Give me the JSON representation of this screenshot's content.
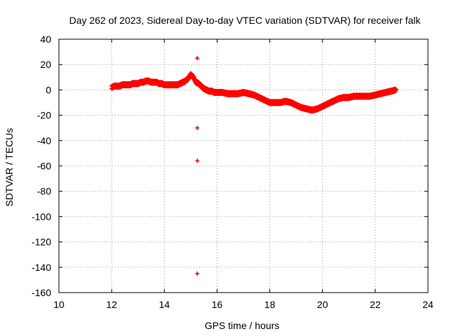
{
  "chart_data": {
    "type": "scatter",
    "title": "Day 262 of 2023, Sidereal Day-to-day VTEC variation (SDTVAR) for receiver falk",
    "xlabel": "GPS time / hours",
    "ylabel": "SDTVAR / TECUs",
    "xlim": [
      10,
      24
    ],
    "ylim": [
      -160,
      40
    ],
    "xticks": [
      "10",
      "12",
      "14",
      "16",
      "18",
      "20",
      "22",
      "24"
    ],
    "yticks": [
      "40",
      "20",
      "0",
      "-20",
      "-40",
      "-60",
      "-80",
      "-100",
      "-120",
      "-140",
      "-160"
    ],
    "grid": true,
    "marker": "+",
    "color": "#ff0000",
    "series": [
      {
        "name": "SDTVAR",
        "points": [
          [
            12.0,
            2
          ],
          [
            12.1,
            3
          ],
          [
            12.2,
            3
          ],
          [
            12.3,
            3
          ],
          [
            12.4,
            4
          ],
          [
            12.5,
            4
          ],
          [
            12.6,
            4
          ],
          [
            12.7,
            4
          ],
          [
            12.8,
            5
          ],
          [
            12.9,
            5
          ],
          [
            13.0,
            5
          ],
          [
            13.1,
            6
          ],
          [
            13.2,
            6
          ],
          [
            13.3,
            7
          ],
          [
            13.4,
            7
          ],
          [
            13.5,
            6
          ],
          [
            13.6,
            6
          ],
          [
            13.7,
            6
          ],
          [
            13.8,
            5
          ],
          [
            13.9,
            5
          ],
          [
            14.0,
            4
          ],
          [
            14.1,
            4
          ],
          [
            14.2,
            4
          ],
          [
            14.3,
            4
          ],
          [
            14.4,
            4
          ],
          [
            14.5,
            4
          ],
          [
            14.6,
            5
          ],
          [
            14.7,
            6
          ],
          [
            14.8,
            7
          ],
          [
            14.9,
            9
          ],
          [
            15.0,
            12
          ],
          [
            15.1,
            10
          ],
          [
            15.2,
            6
          ],
          [
            15.3,
            5
          ],
          [
            15.4,
            3
          ],
          [
            15.5,
            1
          ],
          [
            15.6,
            0
          ],
          [
            15.7,
            -1
          ],
          [
            15.8,
            -1
          ],
          [
            15.9,
            -2
          ],
          [
            16.0,
            -2
          ],
          [
            16.2,
            -2
          ],
          [
            16.4,
            -3
          ],
          [
            16.6,
            -3
          ],
          [
            16.8,
            -3
          ],
          [
            17.0,
            -2
          ],
          [
            17.2,
            -3
          ],
          [
            17.4,
            -4
          ],
          [
            17.6,
            -6
          ],
          [
            17.8,
            -8
          ],
          [
            18.0,
            -10
          ],
          [
            18.2,
            -10
          ],
          [
            18.4,
            -10
          ],
          [
            18.6,
            -9
          ],
          [
            18.8,
            -10
          ],
          [
            19.0,
            -12
          ],
          [
            19.2,
            -14
          ],
          [
            19.4,
            -15
          ],
          [
            19.6,
            -16
          ],
          [
            19.8,
            -15
          ],
          [
            20.0,
            -13
          ],
          [
            20.2,
            -11
          ],
          [
            20.4,
            -9
          ],
          [
            20.6,
            -7
          ],
          [
            20.8,
            -6
          ],
          [
            21.0,
            -6
          ],
          [
            21.2,
            -5
          ],
          [
            21.4,
            -5
          ],
          [
            21.6,
            -5
          ],
          [
            21.8,
            -5
          ],
          [
            22.0,
            -4
          ],
          [
            22.2,
            -3
          ],
          [
            22.4,
            -2
          ],
          [
            22.6,
            -1
          ],
          [
            22.8,
            0
          ],
          [
            15.25,
            25
          ],
          [
            15.25,
            -30
          ],
          [
            15.25,
            -56
          ],
          [
            15.25,
            -145
          ]
        ]
      }
    ]
  }
}
